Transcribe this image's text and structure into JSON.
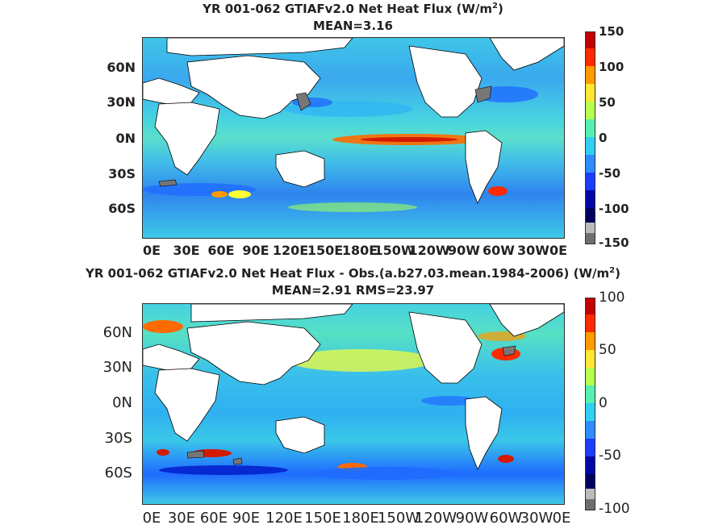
{
  "panels": [
    {
      "title_line1": "YR 001-062 GTIAFv2.0  Net Heat Flux (W/m",
      "title_sup": "2",
      "title_close": ")",
      "title_line2": "MEAN=3.16",
      "y_ticks": [
        "60N",
        "30N",
        "0N",
        "30S",
        "60S"
      ],
      "x_ticks": [
        "0E",
        "30E",
        "60E",
        "90E",
        "120E",
        "150E",
        "180E",
        "150W",
        "120W",
        "90W",
        "60W",
        "30W",
        "0E"
      ],
      "colorbar_ticks": [
        "150",
        "100",
        "50",
        "0",
        "-50",
        "-100",
        "-150"
      ]
    },
    {
      "title_line1": "YR 001-062 GTIAFv2.0  Net Heat Flux - Obs.(a.b27.03.mean.1984-2006) (W/m",
      "title_sup": "2",
      "title_close": ")",
      "title_line2": "MEAN=2.91 RMS=23.97",
      "y_ticks": [
        "60N",
        "30N",
        "0N",
        "30S",
        "60S"
      ],
      "x_ticks": [
        "0E",
        "30E",
        "60E",
        "90E",
        "120E",
        "150E",
        "180E",
        "150W",
        "120W",
        "90W",
        "60W",
        "30W",
        "0E"
      ],
      "colorbar_ticks": [
        "100",
        "50",
        "0",
        "-50",
        "-100"
      ]
    }
  ],
  "colors": {
    "land": "#ffffff",
    "ice_gray": "#777777",
    "colormap": [
      "#8b0000",
      "#ff2a00",
      "#ff9a00",
      "#ffff33",
      "#9cff5f",
      "#3ce0c8",
      "#2fb6f2",
      "#1f6bff",
      "#0016c8",
      "#00006e",
      "#bbbbbb",
      "#6e6e6e"
    ]
  }
}
